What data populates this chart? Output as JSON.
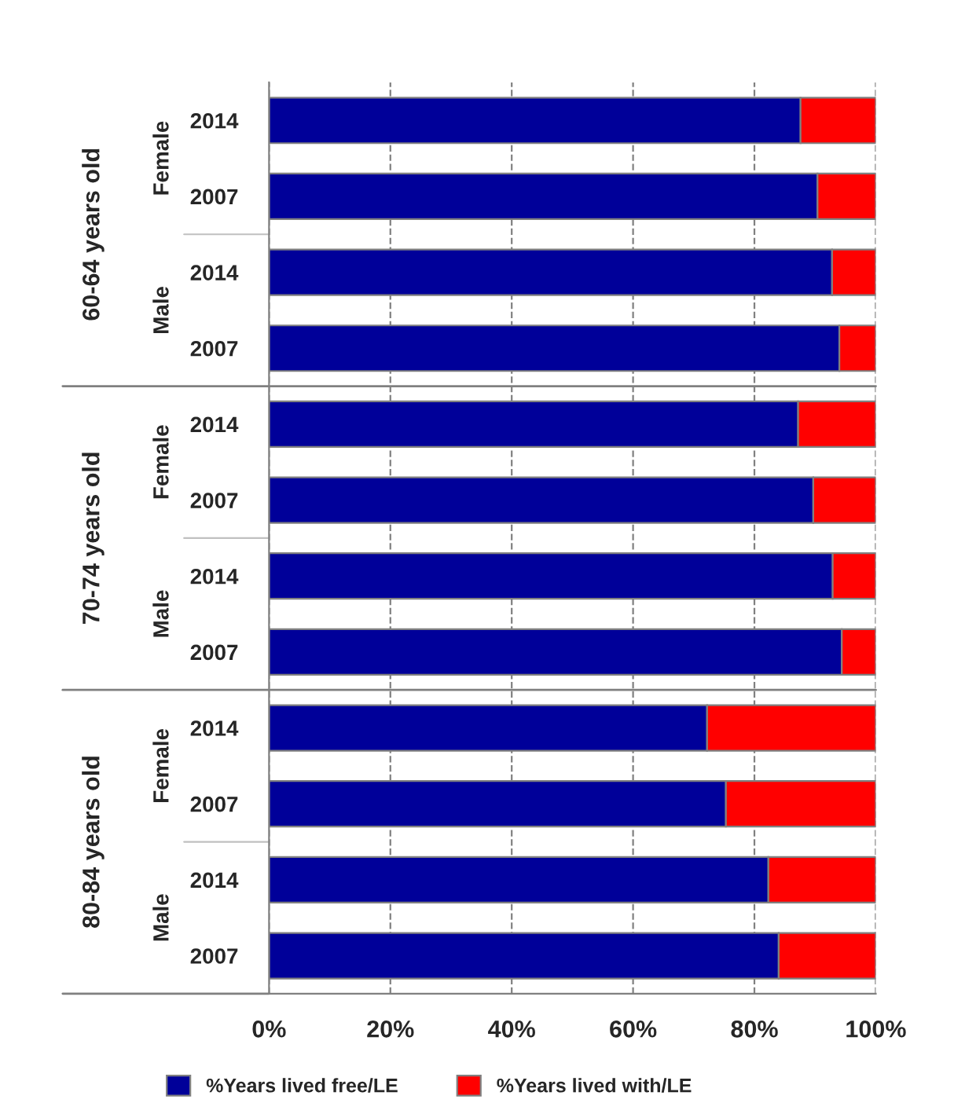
{
  "chart_data": {
    "type": "bar",
    "orientation": "horizontal",
    "stacked": true,
    "categories": [
      "2014",
      "2007",
      "2014",
      "2007",
      "2014",
      "2007",
      "2014",
      "2007",
      "2014",
      "2007",
      "2014",
      "2007"
    ],
    "series": [
      {
        "name": "%Years lived free/LE",
        "color": "#000099",
        "values": [
          87.6,
          90.4,
          92.8,
          94.0,
          87.2,
          89.7,
          92.9,
          94.4,
          72.2,
          75.3,
          82.3,
          84.0
        ]
      },
      {
        "name": "%Years lived with/LE",
        "color": "#ff0000",
        "values": [
          12.4,
          9.6,
          7.2,
          6.0,
          12.8,
          10.3,
          7.1,
          5.6,
          27.8,
          24.7,
          17.7,
          16.0
        ]
      }
    ],
    "xlim": [
      0,
      100
    ],
    "xticks": [
      {
        "value": 0,
        "label": "0%"
      },
      {
        "value": 20,
        "label": "20%"
      },
      {
        "value": 40,
        "label": "40%"
      },
      {
        "value": 60,
        "label": "60%"
      },
      {
        "value": 80,
        "label": "80%"
      },
      {
        "value": 100,
        "label": "100%"
      }
    ],
    "annotations": [
      "60-64 years old",
      "70-74 years old",
      "80-84 years old",
      "Female",
      "Male",
      "Female",
      "Male",
      "Female",
      "Male"
    ],
    "grid": "x",
    "legend": "bottom"
  }
}
